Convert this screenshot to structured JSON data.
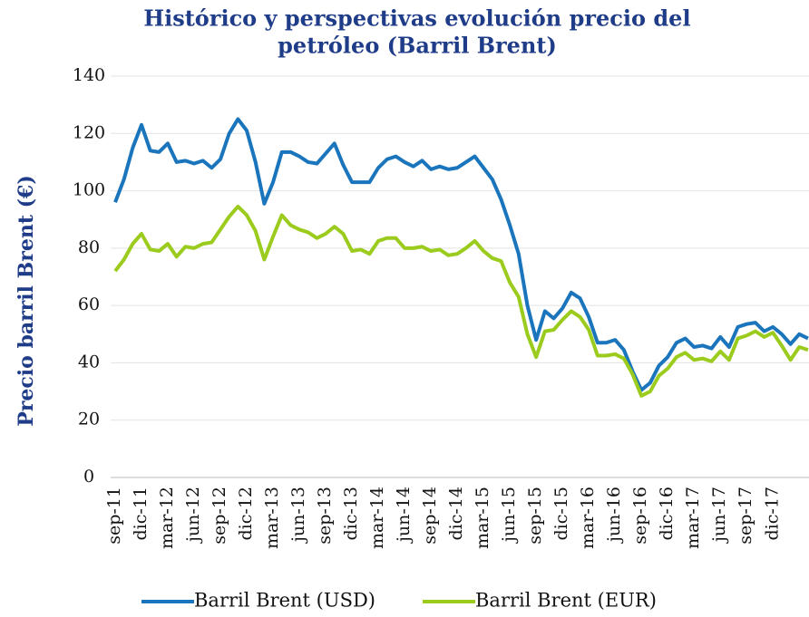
{
  "chart_data": {
    "type": "line",
    "title": [
      "Histórico y perspectivas evolución precio del",
      "petróleo (Barril Brent)"
    ],
    "y_label": "Precio barril Brent (€)",
    "categories": [
      "sep-11",
      null,
      null,
      "dic-11",
      null,
      null,
      "mar-12",
      null,
      null,
      "jun-12",
      null,
      null,
      "sep-12",
      null,
      null,
      "dic-12",
      null,
      null,
      "mar-13",
      null,
      null,
      "jun-13",
      null,
      null,
      "sep-13",
      null,
      null,
      "dic-13",
      null,
      null,
      "mar-14",
      null,
      null,
      "jun-14",
      null,
      null,
      "sep-14",
      null,
      null,
      "dic-14",
      null,
      null,
      "mar-15",
      null,
      null,
      "jun-15",
      null,
      null,
      "sep-15",
      null,
      null,
      "dic-15",
      null,
      null,
      "mar-16",
      null,
      null,
      "jun-16",
      null,
      null,
      "sep-16",
      null,
      null,
      "dic-16",
      null,
      null,
      "mar-17",
      null,
      null,
      "jun-17",
      null,
      null,
      "sep-17",
      null,
      null,
      "dic-17",
      null,
      null,
      null,
      null
    ],
    "series": [
      {
        "name": "Barril Brent (USD)",
        "color": "#1a75bc",
        "values": [
          96,
          104,
          115,
          123,
          114,
          113.5,
          116.5,
          110,
          110.5,
          109.5,
          110.5,
          108,
          111,
          120,
          125,
          121,
          110,
          95.5,
          103,
          113.5,
          113.5,
          112,
          110,
          109.5,
          113,
          116.5,
          109,
          103,
          103,
          103,
          108,
          111,
          112,
          110,
          108.5,
          110.5,
          107.5,
          108.5,
          107.5,
          108,
          110,
          112,
          108,
          104,
          97,
          88,
          78,
          60,
          48,
          58,
          55.5,
          59,
          64.5,
          62.5,
          56,
          47,
          47,
          48,
          44.5,
          37,
          30.5,
          33,
          39,
          42,
          47,
          48.5,
          45.5,
          46,
          45,
          49,
          45.5,
          52.5,
          53.5,
          54,
          51,
          52.5,
          50,
          46.5,
          50,
          48.5
        ]
      },
      {
        "name": "Barril Brent (EUR)",
        "color": "#9bcb1d",
        "values": [
          72,
          76,
          81.5,
          85,
          79.5,
          79,
          81.5,
          77,
          80.5,
          80,
          81.5,
          82,
          86.5,
          91,
          94.5,
          91.5,
          86,
          76,
          84,
          91.5,
          88,
          86.5,
          85.5,
          83.5,
          85,
          87.5,
          85,
          79,
          79.5,
          78,
          82.5,
          83.5,
          83.5,
          80,
          80,
          80.5,
          79,
          79.5,
          77.5,
          78,
          80,
          82.5,
          79,
          76.5,
          75.5,
          68,
          63,
          50,
          42,
          51,
          51.5,
          55,
          58,
          56,
          51.5,
          42.5,
          42.5,
          43,
          41.5,
          36,
          28.5,
          30,
          35.5,
          38,
          42,
          43.5,
          41,
          41.5,
          40.5,
          44,
          41,
          48.5,
          49.5,
          51,
          49,
          50.5,
          46,
          41,
          45.5,
          44.5
        ]
      }
    ],
    "ylim": [
      0,
      140
    ],
    "yticks": [
      0,
      20,
      40,
      60,
      80,
      100,
      120,
      140
    ],
    "grid": true,
    "legend": "bottom"
  }
}
